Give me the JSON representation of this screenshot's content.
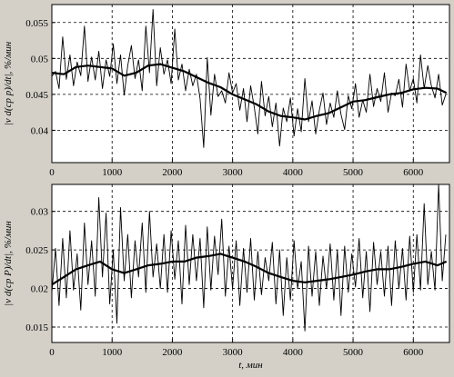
{
  "colors": {
    "background": "#d4d0c8",
    "plot_area": "#ffffff",
    "raw_series": "#000000",
    "smoothed_series": "#000000",
    "grid": "#000000"
  },
  "chart_data": [
    {
      "type": "line",
      "title": "",
      "xlabel": "",
      "ylabel": "|v d(cp p)/dt|, %/мин",
      "xlim": [
        0,
        6600
      ],
      "ylim": [
        0.0355,
        0.0575
      ],
      "xticks": [
        0,
        1000,
        2000,
        3000,
        4000,
        5000,
        6000
      ],
      "yticks": [
        0.04,
        0.045,
        0.05,
        0.055
      ],
      "ytick_labels": [
        "0.04",
        "0.045",
        "0.05",
        "0.055"
      ],
      "grid": true,
      "grid_style": "dashed",
      "series": [
        {
          "style": "thin-noisy",
          "x": [
            0,
            60,
            120,
            180,
            240,
            300,
            360,
            420,
            480,
            540,
            600,
            660,
            720,
            780,
            840,
            900,
            960,
            1020,
            1080,
            1140,
            1200,
            1260,
            1320,
            1380,
            1440,
            1500,
            1560,
            1620,
            1680,
            1740,
            1800,
            1860,
            1920,
            1980,
            2040,
            2100,
            2160,
            2220,
            2280,
            2340,
            2400,
            2460,
            2520,
            2580,
            2640,
            2700,
            2760,
            2820,
            2880,
            2940,
            3000,
            3060,
            3120,
            3180,
            3240,
            3300,
            3360,
            3420,
            3480,
            3540,
            3600,
            3660,
            3720,
            3780,
            3840,
            3900,
            3960,
            4020,
            4080,
            4140,
            4200,
            4260,
            4320,
            4380,
            4440,
            4500,
            4560,
            4620,
            4680,
            4740,
            4800,
            4860,
            4920,
            4980,
            5040,
            5100,
            5160,
            5220,
            5280,
            5340,
            5400,
            5460,
            5520,
            5580,
            5640,
            5700,
            5760,
            5820,
            5880,
            5940,
            6000,
            6060,
            6120,
            6180,
            6240,
            6300,
            6360,
            6420,
            6480,
            6540
          ],
          "y": [
            0.0475,
            0.0482,
            0.0458,
            0.053,
            0.0471,
            0.0505,
            0.0462,
            0.0495,
            0.0476,
            0.0545,
            0.0468,
            0.0502,
            0.047,
            0.051,
            0.0458,
            0.0498,
            0.0475,
            0.052,
            0.0465,
            0.0505,
            0.0449,
            0.049,
            0.0518,
            0.0472,
            0.0498,
            0.0455,
            0.0545,
            0.048,
            0.0568,
            0.0462,
            0.0515,
            0.0478,
            0.0498,
            0.0465,
            0.0541,
            0.047,
            0.0492,
            0.0455,
            0.0485,
            0.0462,
            0.0478,
            0.0444,
            0.0376,
            0.0501,
            0.0421,
            0.0478,
            0.0447,
            0.0455,
            0.0438,
            0.048,
            0.0452,
            0.0465,
            0.0428,
            0.0458,
            0.0412,
            0.0462,
            0.0432,
            0.0395,
            0.0468,
            0.042,
            0.0447,
            0.0405,
            0.0438,
            0.0378,
            0.0431,
            0.0412,
            0.0445,
            0.0392,
            0.043,
            0.0398,
            0.0472,
            0.0412,
            0.0441,
            0.0395,
            0.0428,
            0.0452,
            0.0408,
            0.0438,
            0.0418,
            0.0455,
            0.0422,
            0.0401,
            0.0448,
            0.043,
            0.0465,
            0.0418,
            0.0442,
            0.0425,
            0.0478,
            0.0433,
            0.0458,
            0.044,
            0.048,
            0.0425,
            0.0452,
            0.0448,
            0.0471,
            0.0432,
            0.0492,
            0.0455,
            0.0472,
            0.0438,
            0.0505,
            0.0458,
            0.049,
            0.0462,
            0.0445,
            0.0478,
            0.0435,
            0.045
          ]
        },
        {
          "style": "thick-smoothed",
          "x": [
            0,
            200,
            400,
            600,
            800,
            1000,
            1200,
            1400,
            1600,
            1800,
            2000,
            2200,
            2400,
            2600,
            2800,
            3000,
            3200,
            3400,
            3600,
            3800,
            4000,
            4200,
            4400,
            4600,
            4800,
            5000,
            5200,
            5400,
            5600,
            5800,
            6000,
            6200,
            6400,
            6550
          ],
          "y": [
            0.048,
            0.0478,
            0.0488,
            0.049,
            0.0488,
            0.0486,
            0.0476,
            0.048,
            0.049,
            0.0492,
            0.0487,
            0.0482,
            0.0474,
            0.0466,
            0.046,
            0.045,
            0.0443,
            0.0436,
            0.0426,
            0.042,
            0.0418,
            0.0415,
            0.042,
            0.0424,
            0.0432,
            0.044,
            0.0442,
            0.0446,
            0.045,
            0.0452,
            0.0457,
            0.0459,
            0.0458,
            0.0452
          ]
        }
      ]
    },
    {
      "type": "line",
      "title": "",
      "xlabel": "t, мин",
      "ylabel": "|v d(cp P)/dt|, %/мин",
      "xlim": [
        0,
        6600
      ],
      "ylim": [
        0.013,
        0.0335
      ],
      "xticks": [
        0,
        1000,
        2000,
        3000,
        4000,
        5000,
        6000
      ],
      "yticks": [
        0.015,
        0.02,
        0.025,
        0.03
      ],
      "ytick_labels": [
        "0.015",
        "0.02",
        "0.025",
        "0.03"
      ],
      "grid": true,
      "grid_style": "dashed",
      "series": [
        {
          "style": "thin-noisy",
          "x": [
            0,
            60,
            120,
            180,
            240,
            300,
            360,
            420,
            480,
            540,
            600,
            660,
            720,
            780,
            840,
            900,
            960,
            1020,
            1080,
            1140,
            1200,
            1260,
            1320,
            1380,
            1440,
            1500,
            1560,
            1620,
            1680,
            1740,
            1800,
            1860,
            1920,
            1980,
            2040,
            2100,
            2160,
            2220,
            2280,
            2340,
            2400,
            2460,
            2520,
            2580,
            2640,
            2700,
            2760,
            2820,
            2880,
            2940,
            3000,
            3060,
            3120,
            3180,
            3240,
            3300,
            3360,
            3420,
            3480,
            3540,
            3600,
            3660,
            3720,
            3780,
            3840,
            3900,
            3960,
            4020,
            4080,
            4140,
            4200,
            4260,
            4320,
            4380,
            4440,
            4500,
            4560,
            4620,
            4680,
            4740,
            4800,
            4860,
            4920,
            4980,
            5040,
            5100,
            5160,
            5220,
            5280,
            5340,
            5400,
            5460,
            5520,
            5580,
            5640,
            5700,
            5760,
            5820,
            5880,
            5940,
            6000,
            6060,
            6120,
            6180,
            6240,
            6300,
            6360,
            6420,
            6480,
            6540
          ],
          "y": [
            0.0195,
            0.0252,
            0.0178,
            0.0265,
            0.0188,
            0.0275,
            0.0198,
            0.0245,
            0.0172,
            0.0285,
            0.0205,
            0.0262,
            0.019,
            0.0318,
            0.0215,
            0.0298,
            0.018,
            0.025,
            0.0155,
            0.0305,
            0.021,
            0.027,
            0.0188,
            0.0262,
            0.0215,
            0.0285,
            0.0195,
            0.03,
            0.0215,
            0.0258,
            0.02,
            0.027,
            0.0195,
            0.0275,
            0.0212,
            0.0262,
            0.018,
            0.0282,
            0.0205,
            0.027,
            0.021,
            0.0265,
            0.0175,
            0.028,
            0.0198,
            0.0268,
            0.0218,
            0.029,
            0.019,
            0.0255,
            0.02,
            0.0262,
            0.0178,
            0.0252,
            0.0195,
            0.0265,
            0.0185,
            0.0248,
            0.0192,
            0.024,
            0.021,
            0.026,
            0.018,
            0.025,
            0.0165,
            0.024,
            0.0185,
            0.0262,
            0.02,
            0.0235,
            0.0145,
            0.0255,
            0.019,
            0.0248,
            0.0178,
            0.0242,
            0.02,
            0.0258,
            0.0185,
            0.025,
            0.0165,
            0.0255,
            0.0195,
            0.0245,
            0.0202,
            0.0265,
            0.0188,
            0.0248,
            0.017,
            0.026,
            0.0205,
            0.0248,
            0.019,
            0.0255,
            0.0178,
            0.0262,
            0.02,
            0.0252,
            0.0185,
            0.0268,
            0.0195,
            0.027,
            0.0198,
            0.031,
            0.0205,
            0.0248,
            0.0198,
            0.0335,
            0.021,
            0.027
          ]
        },
        {
          "style": "thick-smoothed",
          "x": [
            0,
            200,
            400,
            600,
            800,
            1000,
            1200,
            1400,
            1600,
            1800,
            2000,
            2200,
            2400,
            2600,
            2800,
            3000,
            3200,
            3400,
            3600,
            3800,
            4000,
            4200,
            4400,
            4600,
            4800,
            5000,
            5200,
            5400,
            5600,
            5800,
            6000,
            6200,
            6400,
            6550
          ],
          "y": [
            0.0205,
            0.0215,
            0.0225,
            0.023,
            0.0235,
            0.0225,
            0.022,
            0.0225,
            0.023,
            0.0232,
            0.0235,
            0.0235,
            0.024,
            0.0242,
            0.0245,
            0.024,
            0.0235,
            0.0228,
            0.022,
            0.0215,
            0.021,
            0.0208,
            0.021,
            0.0212,
            0.0215,
            0.0218,
            0.0222,
            0.0225,
            0.0225,
            0.0228,
            0.0232,
            0.0235,
            0.023,
            0.0235
          ]
        }
      ]
    }
  ]
}
